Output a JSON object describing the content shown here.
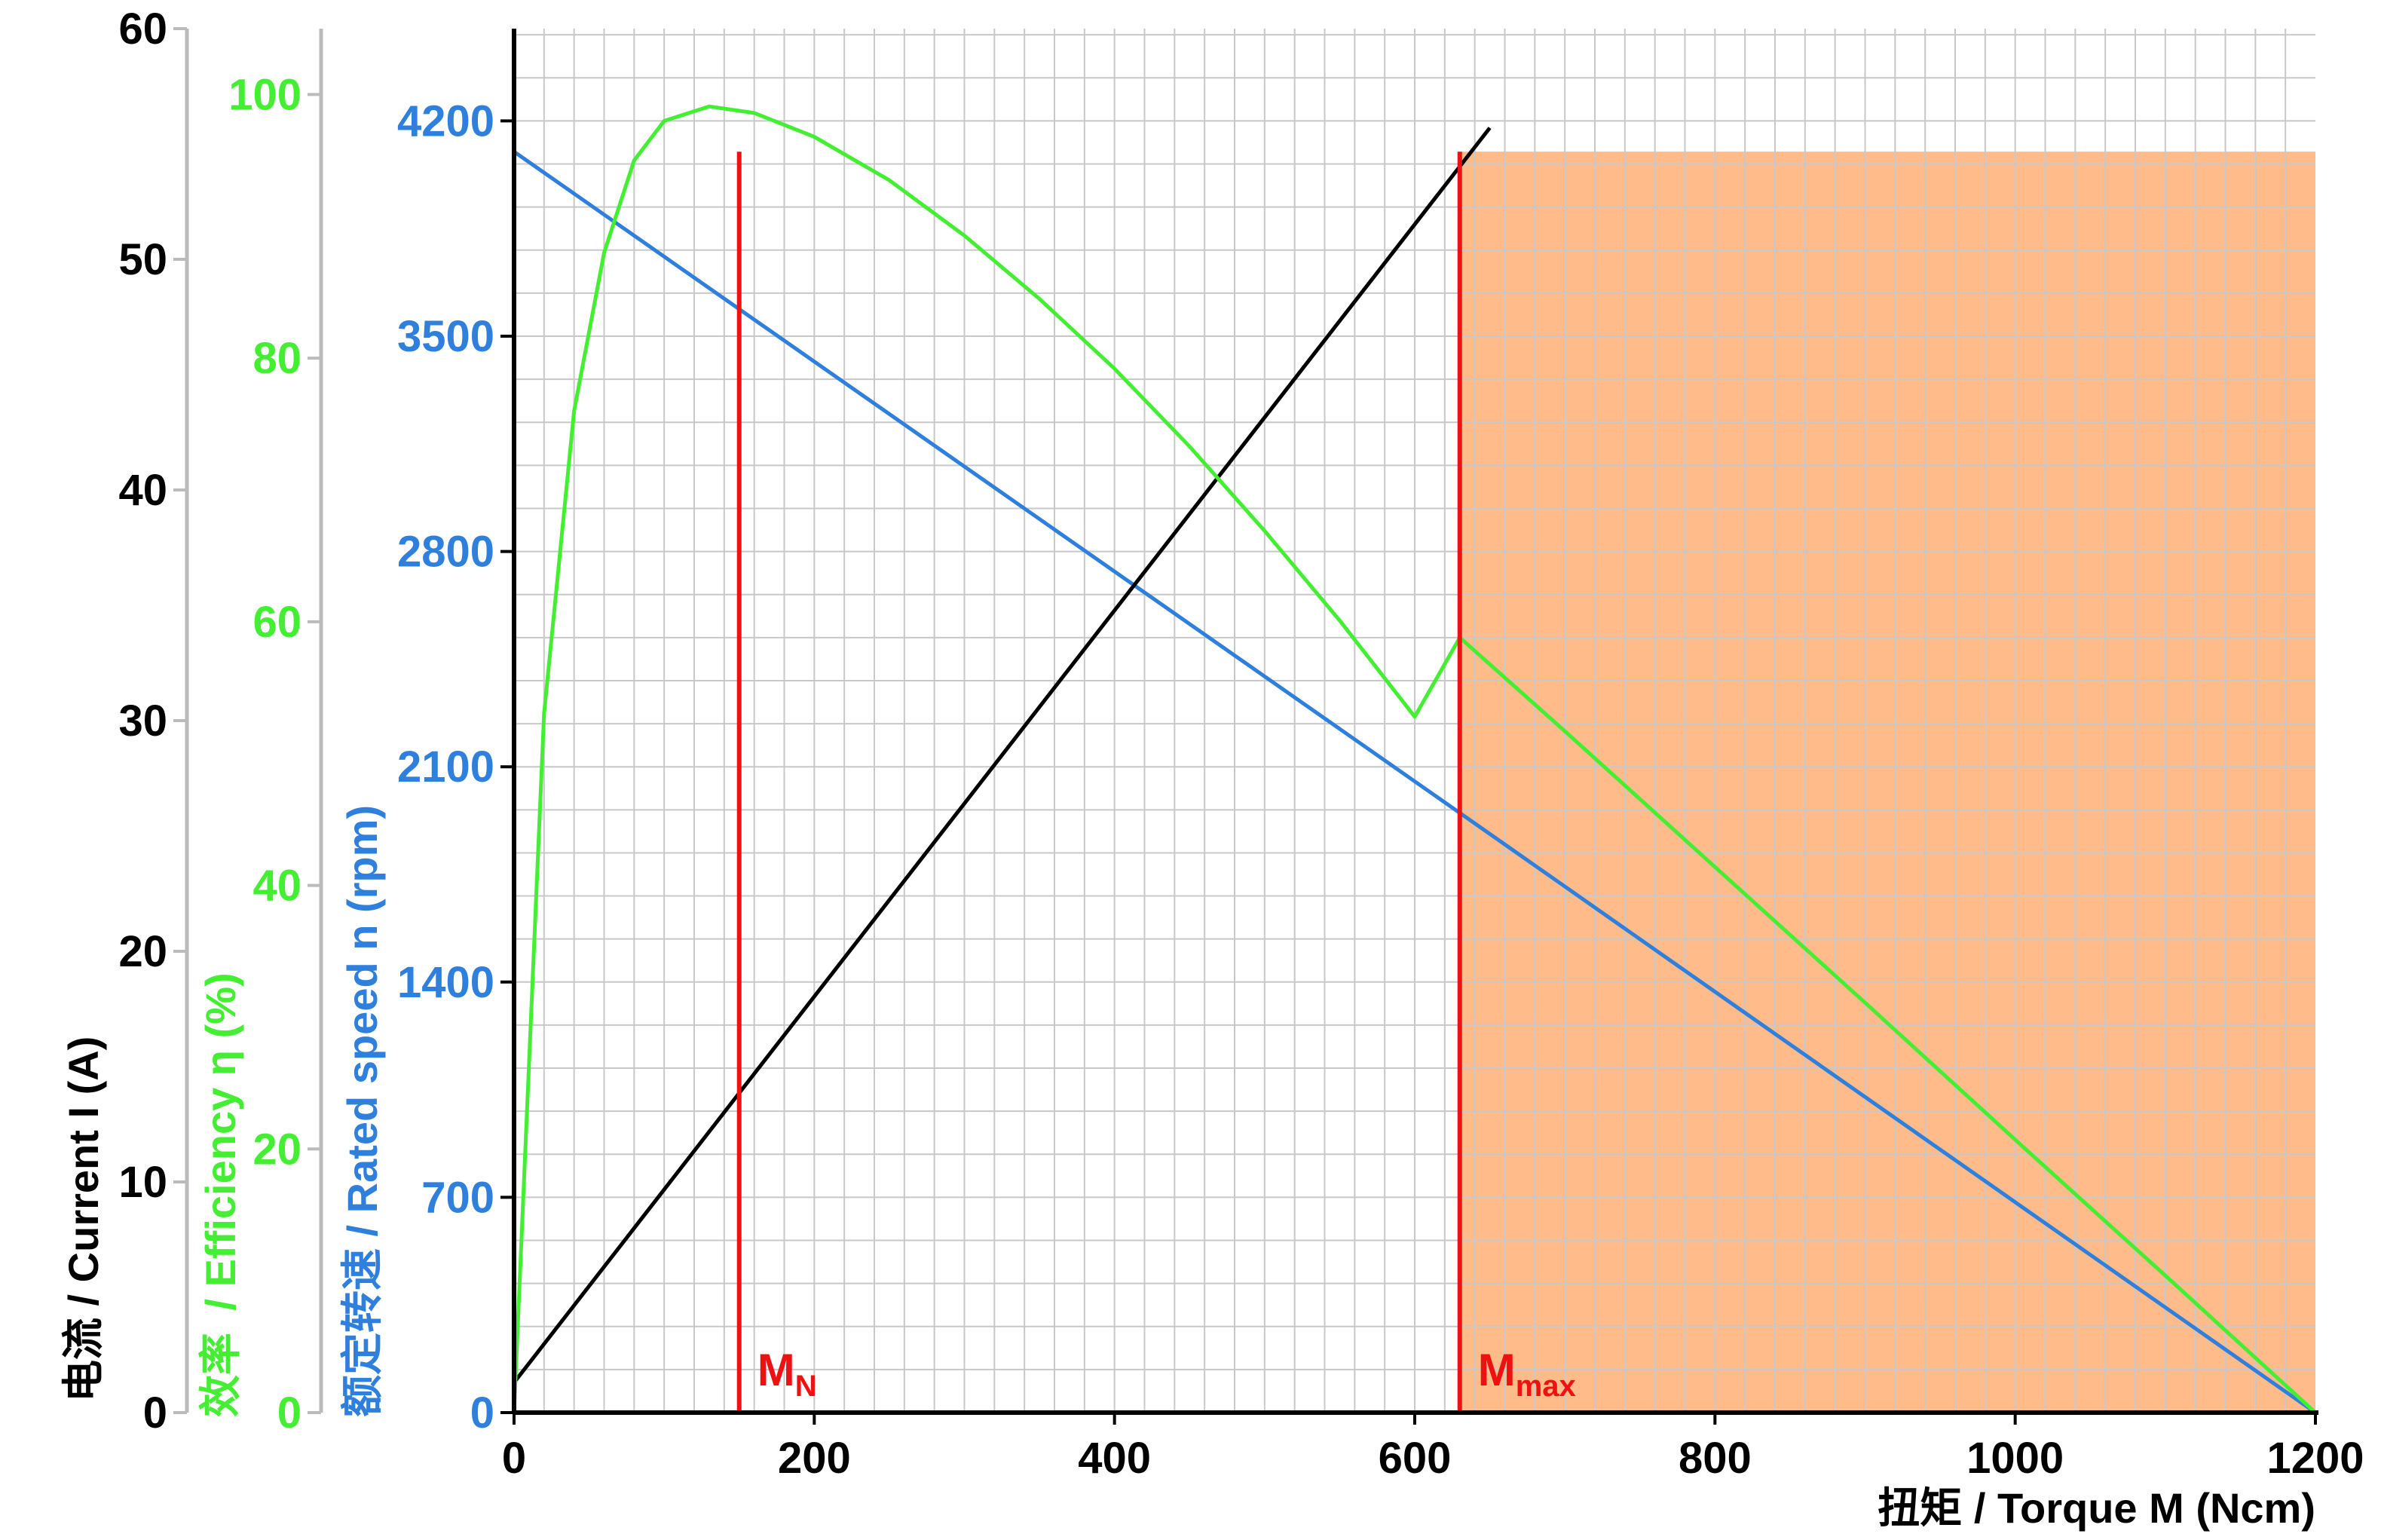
{
  "chart_data": {
    "type": "line",
    "title": "",
    "xlabel": "扭矩 / Torque M (Ncm)",
    "x_ticks": [
      0,
      200,
      400,
      600,
      800,
      1000,
      1200
    ],
    "xlim": [
      0,
      1200
    ],
    "grid": true,
    "axes": {
      "current": {
        "label": "电流 / Current I (A)",
        "ticks": [
          0,
          10,
          20,
          30,
          40,
          50,
          60
        ],
        "lim": [
          0,
          60
        ],
        "color": "#000000"
      },
      "efficiency": {
        "label_cn": "效率",
        "label": "/ Efficiency η  (%)",
        "ticks": [
          0,
          20,
          40,
          60,
          80,
          100
        ],
        "lim": [
          0,
          105
        ],
        "color": "#44ee33"
      },
      "speed": {
        "label": "额定转速 / Rated speed n (rpm)",
        "ticks": [
          0,
          700,
          1400,
          2100,
          2800,
          3500,
          4200
        ],
        "lim": [
          0,
          4500
        ],
        "color": "#2f7fdc"
      }
    },
    "series": [
      {
        "axis": "speed",
        "color": "#2f7fdc",
        "x": [
          0,
          630,
          1200
        ],
        "y": [
          4100,
          1950,
          0
        ]
      },
      {
        "axis": "current",
        "color": "#000000",
        "x": [
          0,
          650
        ],
        "y": [
          1.3,
          55.7
        ]
      },
      {
        "axis": "efficiency",
        "color": "#44ee33",
        "x": [
          0,
          20,
          40,
          60,
          80,
          100,
          130,
          160,
          200,
          250,
          300,
          350,
          400,
          450,
          500,
          550,
          600,
          630,
          700,
          800,
          900,
          1000,
          1100,
          1200
        ],
        "y": [
          0,
          53,
          76,
          88,
          95,
          98,
          99.1,
          98.6,
          96.8,
          93.5,
          89.3,
          84.5,
          79.2,
          73.3,
          66.9,
          60.1,
          52.8,
          58.8,
          51.7,
          41.4,
          31.1,
          20.7,
          10.4,
          0
        ]
      }
    ],
    "markers": [
      {
        "label_main": "M",
        "label_sub": "N",
        "x": 150,
        "top_speed": 4100,
        "color": "#ee1111"
      },
      {
        "label_main": "M",
        "label_sub": "max",
        "x": 630,
        "top_speed": 4100,
        "color": "#ee1111"
      }
    ],
    "shaded_region": {
      "x": [
        630,
        1200
      ],
      "top_speed": 4100,
      "color": "#ffbb8a"
    }
  }
}
